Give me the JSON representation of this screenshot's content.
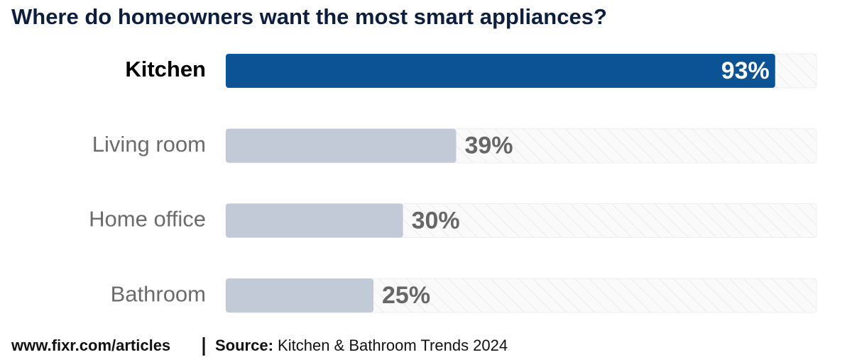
{
  "chart_data": {
    "type": "bar",
    "orientation": "horizontal",
    "title": "Where do homeowners want the most smart appliances?",
    "categories": [
      "Kitchen",
      "Living room",
      "Home office",
      "Bathroom"
    ],
    "values": [
      93,
      39,
      30,
      25
    ],
    "value_labels": [
      "93%",
      "39%",
      "30%",
      "25%"
    ],
    "colors": [
      "#0b5394",
      "#c3cad7",
      "#c3cad7",
      "#c3cad7"
    ],
    "xlim": [
      0,
      100
    ],
    "url": "www.fixr.com/articles",
    "source_label": "Source:",
    "source": "Kitchen & Bathroom Trends 2024"
  }
}
